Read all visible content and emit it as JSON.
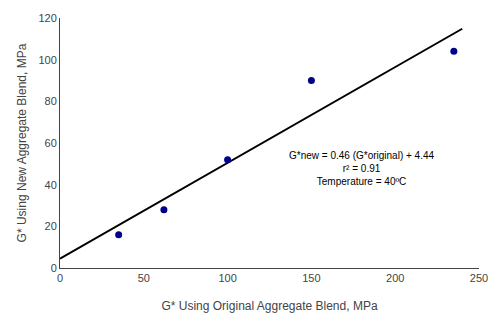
{
  "chart_data": {
    "type": "scatter",
    "xlabel": "G* Using Original Aggregate Blend, MPa",
    "ylabel": "G* Using New Aggregate Blend, MPa",
    "series": [
      {
        "type": "scatter",
        "marker": "circle",
        "color": "#00008B",
        "x": [
          35,
          62,
          100,
          150,
          235
        ],
        "values": [
          16,
          28,
          52,
          90,
          104
        ]
      },
      {
        "type": "line",
        "line_style": "solid",
        "color": "#000000",
        "x": [
          0,
          240
        ],
        "values": [
          4.44,
          114.84
        ]
      }
    ],
    "annotations": [
      "G*new = 0.46 (G*original) + 4.44",
      "r² = 0.91",
      "Temperature = 40ºC"
    ],
    "xlim": [
      0,
      250
    ],
    "ylim": [
      0,
      120
    ],
    "xticks": [
      0,
      50,
      100,
      150,
      200,
      250
    ],
    "yticks": [
      0,
      20,
      40,
      60,
      80,
      100,
      120
    ],
    "grid": false
  }
}
